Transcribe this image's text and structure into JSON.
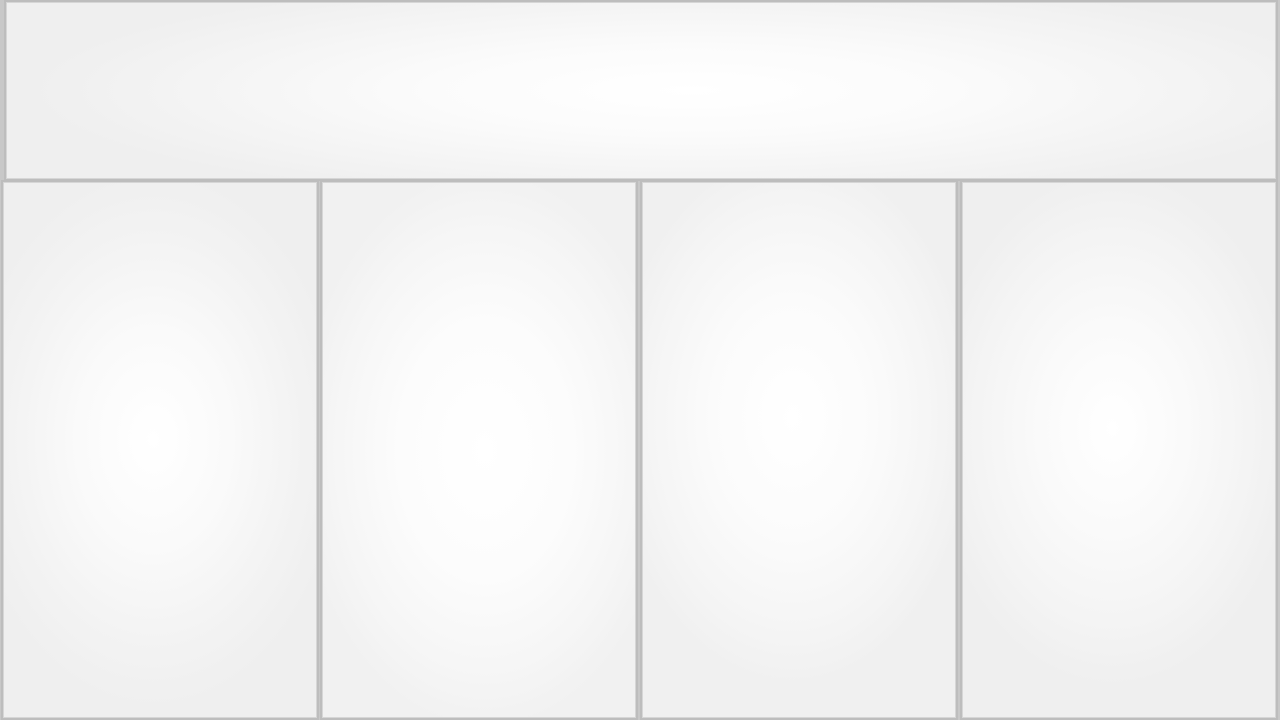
{
  "layout": {
    "header": {},
    "columns": [
      {},
      {},
      {},
      {}
    ]
  },
  "colors": {
    "background": "#c8c8c8",
    "panel_border": "#bdbdbd",
    "panel_center": "#ffffff",
    "panel_edge": "#efefef"
  }
}
